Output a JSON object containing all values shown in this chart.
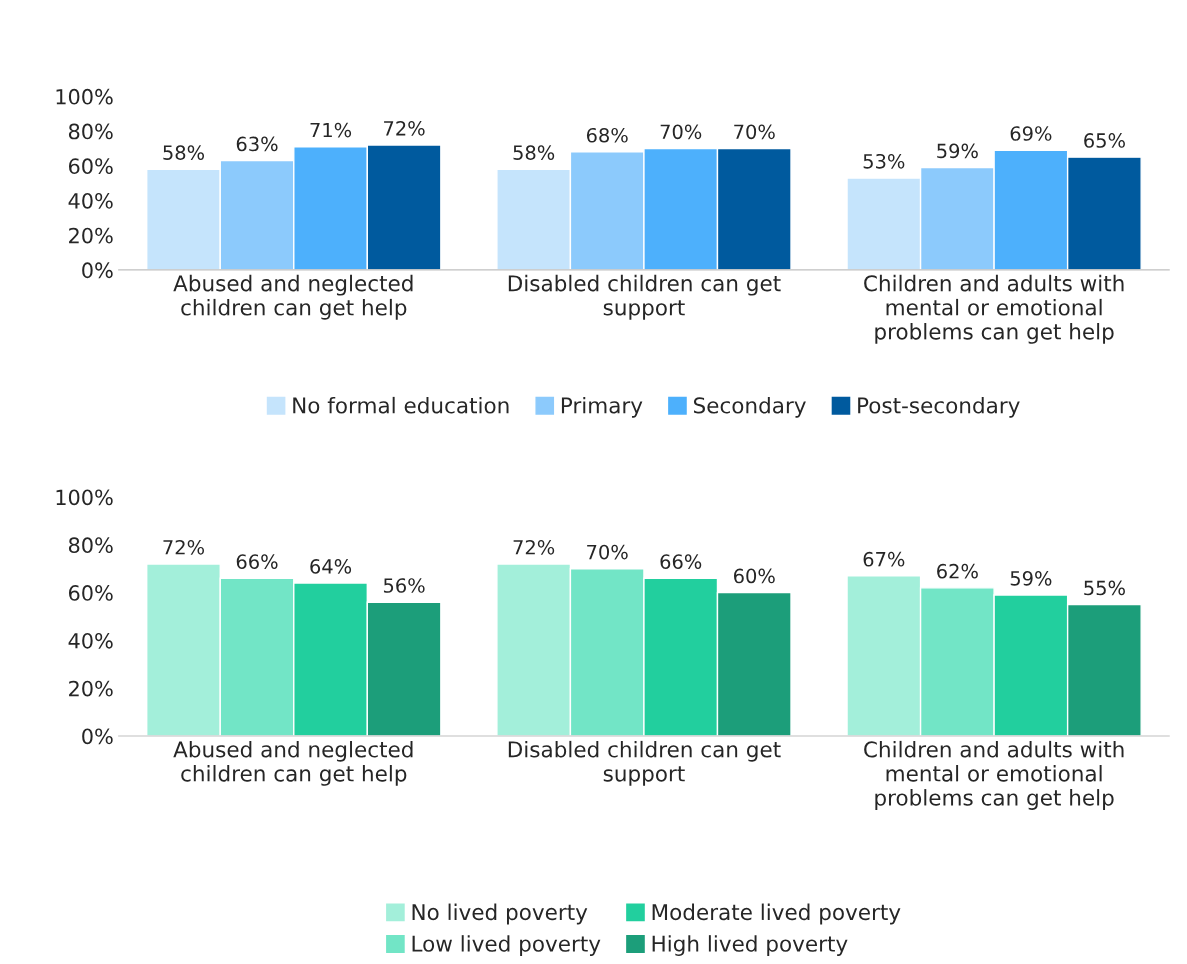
{
  "chart_data": [
    {
      "type": "bar",
      "categories": [
        "Abused and neglected\nchildren can get help",
        "Disabled children can get\nsupport",
        "Children and adults with\nmental or emotional\nproblems can get help"
      ],
      "series": [
        {
          "name": "No formal education",
          "color": "#c5e4fc",
          "values": [
            58,
            58,
            53
          ],
          "value_labels": [
            "58%",
            "58%",
            "53%"
          ]
        },
        {
          "name": "Primary",
          "color": "#8ccafc",
          "values": [
            63,
            68,
            59
          ],
          "value_labels": [
            "63%",
            "68%",
            "59%"
          ]
        },
        {
          "name": "Secondary",
          "color": "#4db0fc",
          "values": [
            71,
            70,
            69
          ],
          "value_labels": [
            "71%",
            "70%",
            "69%"
          ]
        },
        {
          "name": "Post-secondary",
          "color": "#005a9e",
          "values": [
            72,
            70,
            65
          ],
          "value_labels": [
            "72%",
            "70%",
            "65%"
          ]
        }
      ],
      "ylim": [
        0,
        100
      ],
      "yticks": [
        {
          "value": 0,
          "label": "0%"
        },
        {
          "value": 20,
          "label": "20%"
        },
        {
          "value": 40,
          "label": "40%"
        },
        {
          "value": 60,
          "label": "60%"
        },
        {
          "value": 80,
          "label": "80%"
        },
        {
          "value": 100,
          "label": "100%"
        }
      ],
      "grid": false,
      "legend": "bottom"
    },
    {
      "type": "bar",
      "categories": [
        "Abused and neglected\nchildren can get help",
        "Disabled children can get\nsupport",
        "Children and adults with\nmental or emotional\nproblems can get help"
      ],
      "series": [
        {
          "name": "No lived poverty",
          "color": "#a3efda",
          "values": [
            72,
            72,
            67
          ],
          "value_labels": [
            "72%",
            "72%",
            "67%"
          ]
        },
        {
          "name": "Low lived poverty",
          "color": "#72e5c6",
          "values": [
            66,
            70,
            62
          ],
          "value_labels": [
            "66%",
            "70%",
            "62%"
          ]
        },
        {
          "name": "Moderate lived poverty",
          "color": "#22cf9e",
          "values": [
            64,
            66,
            59
          ],
          "value_labels": [
            "64%",
            "66%",
            "59%"
          ]
        },
        {
          "name": "High lived poverty",
          "color": "#1c9e7a",
          "values": [
            56,
            60,
            55
          ],
          "value_labels": [
            "56%",
            "60%",
            "55%"
          ]
        }
      ],
      "ylim": [
        0,
        100
      ],
      "yticks": [
        {
          "value": 0,
          "label": "0%"
        },
        {
          "value": 20,
          "label": "20%"
        },
        {
          "value": 40,
          "label": "40%"
        },
        {
          "value": 60,
          "label": "60%"
        },
        {
          "value": 80,
          "label": "80%"
        },
        {
          "value": 100,
          "label": "100%"
        }
      ],
      "grid": false,
      "legend": "bottom"
    }
  ]
}
